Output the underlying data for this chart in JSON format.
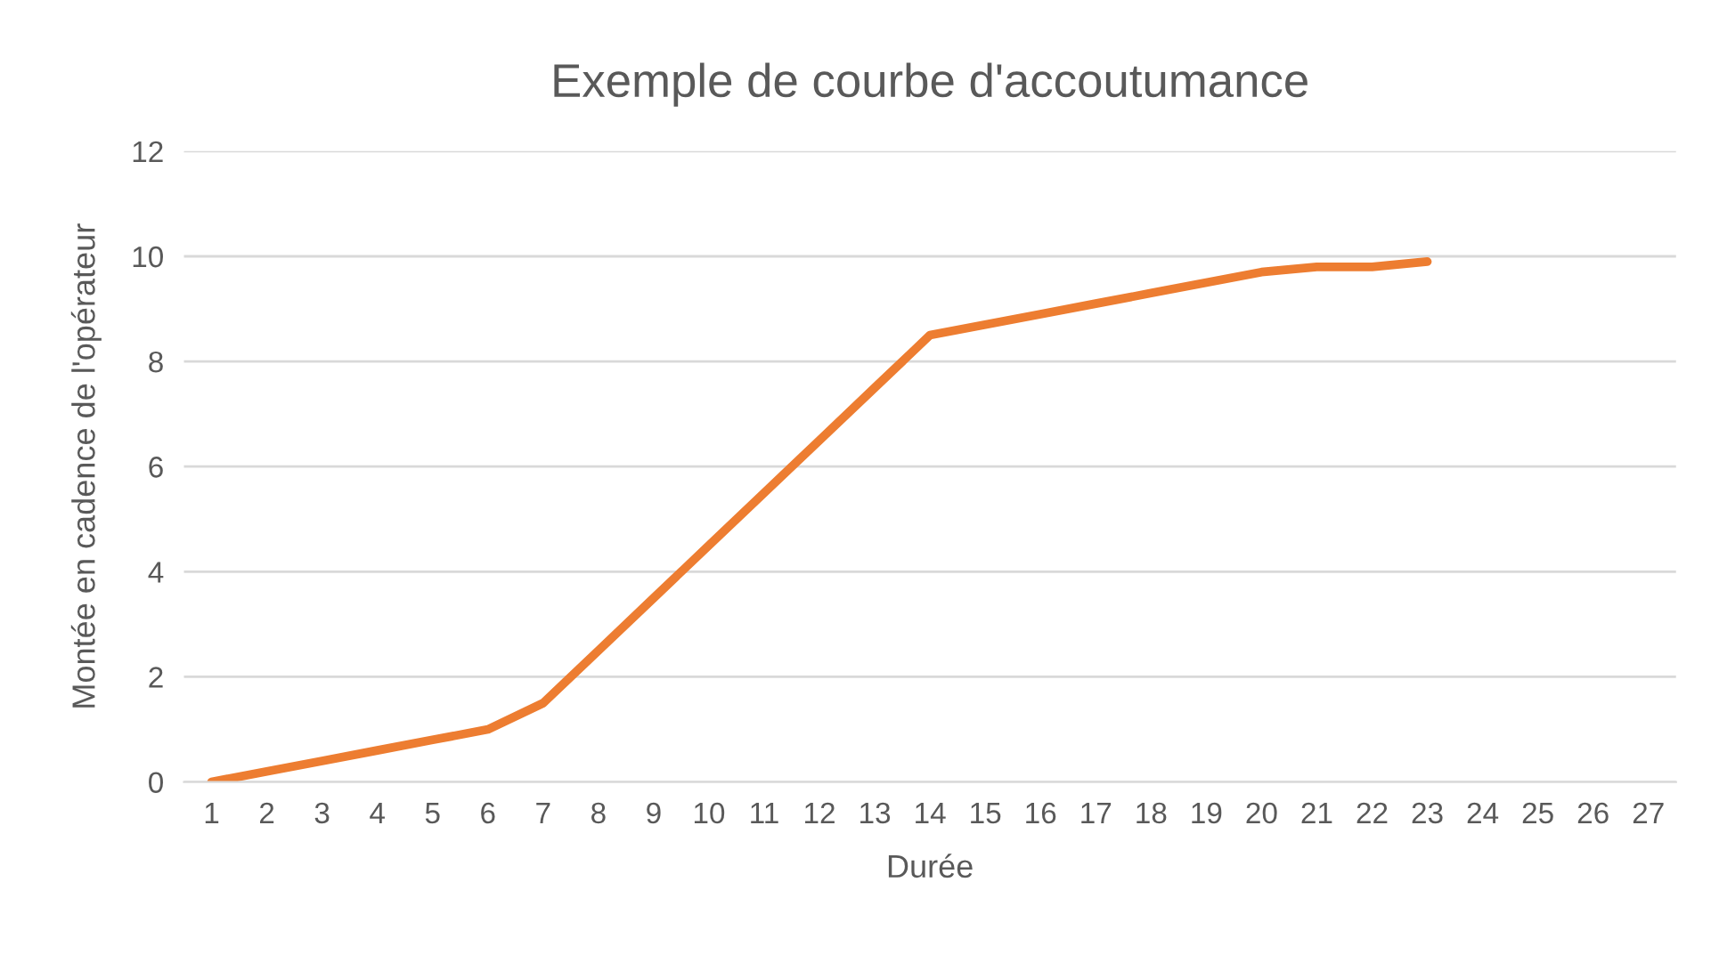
{
  "chart_data": {
    "type": "line",
    "title": "Exemple de courbe d'accoutumance",
    "xlabel": "Durée",
    "ylabel": "Montée en cadence de l'opérateur",
    "categories": [
      "1",
      "2",
      "3",
      "4",
      "5",
      "6",
      "7",
      "8",
      "9",
      "10",
      "11",
      "12",
      "13",
      "14",
      "15",
      "16",
      "17",
      "18",
      "19",
      "20",
      "21",
      "22",
      "23",
      "24",
      "25",
      "26",
      "27"
    ],
    "series": [
      {
        "color": "#ed7d31",
        "values": [
          0,
          0.2,
          0.4,
          0.6,
          0.8,
          1.0,
          1.5,
          2.5,
          3.5,
          4.5,
          5.5,
          6.5,
          7.5,
          8.5,
          8.7,
          8.9,
          9.1,
          9.3,
          9.5,
          9.7,
          9.8,
          9.8,
          9.9,
          null,
          null,
          null,
          null
        ]
      }
    ],
    "ylim": [
      0,
      12
    ],
    "yticks": [
      0,
      2,
      4,
      6,
      8,
      10,
      12
    ],
    "grid": "y",
    "marker": "none",
    "line_style": "solid"
  }
}
